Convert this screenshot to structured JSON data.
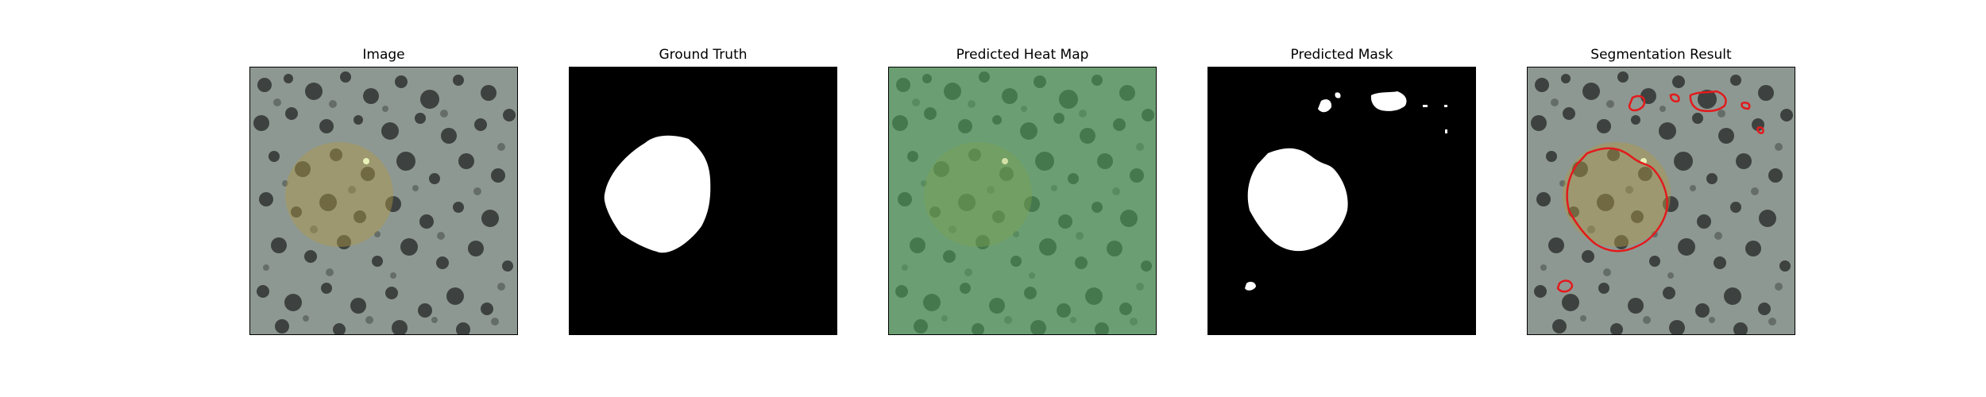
{
  "figure": {
    "panels": [
      {
        "id": "image",
        "title": "Image"
      },
      {
        "id": "ground-truth",
        "title": "Ground Truth"
      },
      {
        "id": "heat-map",
        "title": "Predicted Heat Map"
      },
      {
        "id": "mask",
        "title": "Predicted Mask"
      },
      {
        "id": "segmentation",
        "title": "Segmentation Result"
      }
    ]
  },
  "colors": {
    "texture_light": "#8e9892",
    "texture_dark": "#2f3432",
    "lesion_tint": "#b09a44",
    "heat_green": "#4fa65a",
    "mask_white": "#ffffff",
    "mask_black": "#000000",
    "contour_red": "#e31a1c"
  }
}
